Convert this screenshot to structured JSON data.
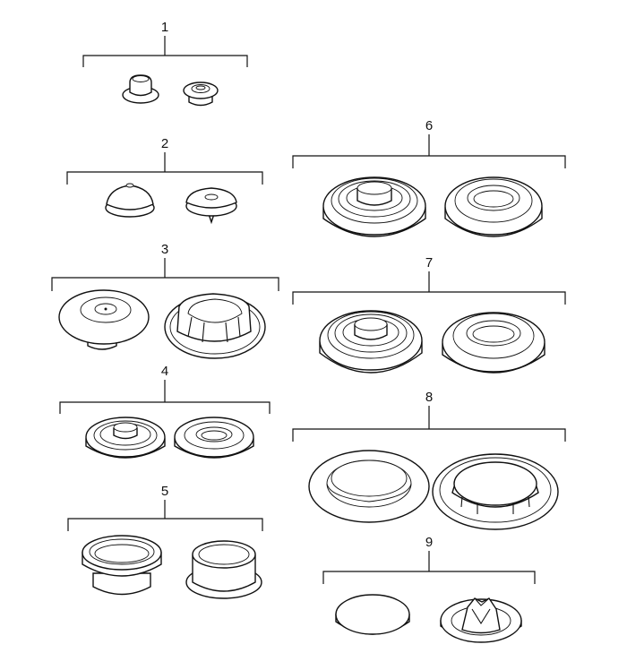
{
  "callouts": [
    {
      "label": "1"
    },
    {
      "label": "2"
    },
    {
      "label": "3"
    },
    {
      "label": "4"
    },
    {
      "label": "5"
    },
    {
      "label": "6"
    },
    {
      "label": "7"
    },
    {
      "label": "8"
    },
    {
      "label": "9"
    }
  ]
}
